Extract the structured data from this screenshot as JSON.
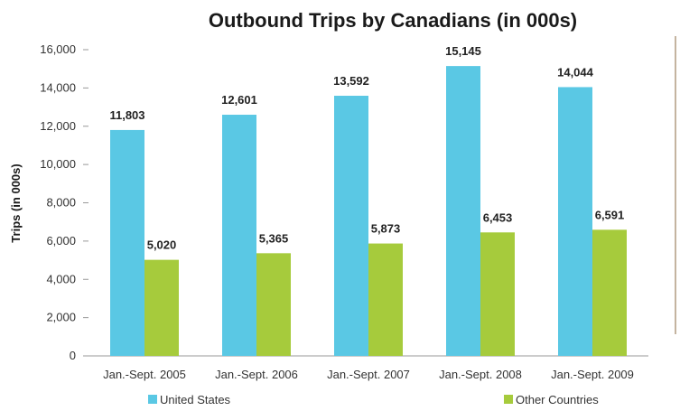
{
  "chart_data": {
    "type": "bar",
    "title": "Outbound Trips by Canadians (in 000s)",
    "xlabel": "",
    "ylabel": "Trips (in 000s)",
    "ylim": [
      0,
      16000
    ],
    "yticks": [
      0,
      2000,
      4000,
      6000,
      8000,
      10000,
      12000,
      14000,
      16000
    ],
    "ytick_labels": [
      "0",
      "2,000",
      "4,000",
      "6,000",
      "8,000",
      "10,000",
      "12,000",
      "14,000",
      "16,000"
    ],
    "categories": [
      "Jan.-Sept. 2005",
      "Jan.-Sept. 2006",
      "Jan.-Sept. 2007",
      "Jan.-Sept. 2008",
      "Jan.-Sept. 2009"
    ],
    "series": [
      {
        "name": "United States",
        "color": "#5ac8e4",
        "values": [
          11803,
          12601,
          13592,
          15145,
          14044
        ],
        "labels": [
          "11,803",
          "12,601",
          "13,592",
          "15,145",
          "14,044"
        ]
      },
      {
        "name": "Other Countries",
        "color": "#a6cb3c",
        "values": [
          5020,
          5365,
          5873,
          6453,
          6591
        ],
        "labels": [
          "5,020",
          "5,365",
          "5,873",
          "6,453",
          "6,591"
        ]
      }
    ],
    "grid": false,
    "legend_position": "bottom"
  }
}
